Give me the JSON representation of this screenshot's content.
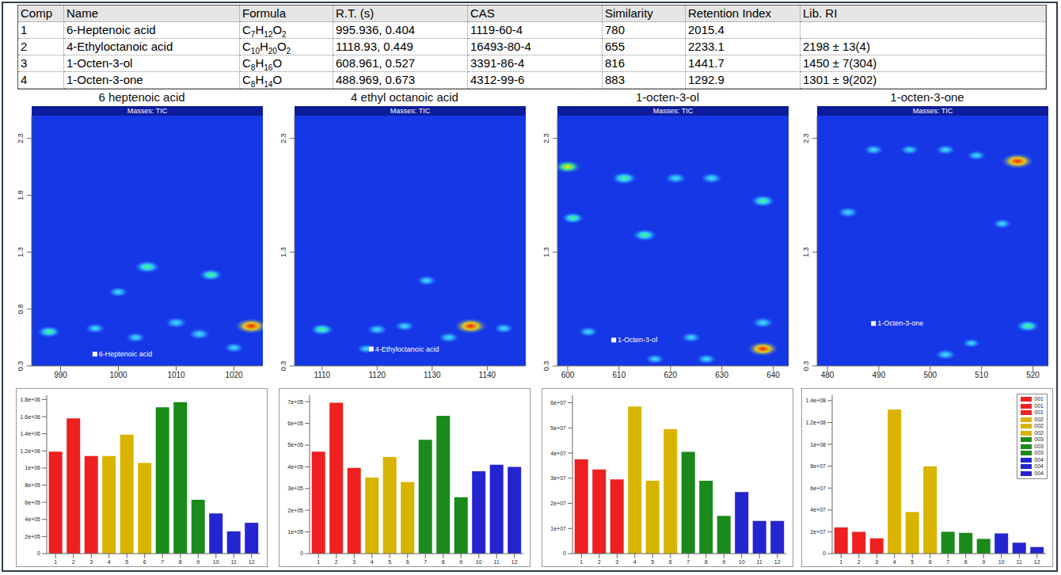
{
  "table": {
    "columns": [
      "Comp",
      "Name",
      "Formula",
      "R.T. (s)",
      "CAS",
      "Similarity",
      "Retention Index",
      "Lib. RI"
    ],
    "rows": [
      [
        1,
        "6-Heptenoic acid",
        "C7H12O2",
        "995.936, 0.404",
        "1119-60-4",
        780,
        2015.4,
        null
      ],
      [
        2,
        "4-Ethyloctanoic acid",
        "C10H20O2",
        "1118.93, 0.449",
        "16493-80-4",
        655,
        2233.1,
        "2198 ± 13(4)"
      ],
      [
        3,
        "1-Octen-3-ol",
        "C8H16O",
        "608.961, 0.527",
        "3391-86-4",
        816,
        1441.7,
        "1450 ± 7(304)"
      ],
      [
        4,
        "1-Octen-3-one",
        "C8H14O",
        "488.969, 0.673",
        "4312-99-6",
        883,
        1292.9,
        "1301 ± 9(202)"
      ]
    ]
  },
  "heatmaps": [
    {
      "type": "heatmap",
      "title": "6 heptenoic acid",
      "header": "Masses: TIC",
      "xlim": [
        985,
        1025
      ],
      "xticks": [
        990,
        1000,
        1010,
        1020
      ],
      "ylim": [
        0.3,
        2.5
      ],
      "yticks": [
        0.3,
        0.8,
        1.3,
        1.8,
        2.3
      ],
      "marker": {
        "label": "6-Heptenoic acid",
        "rt1": 995.936,
        "rt2": 0.404
      },
      "peaks": [
        {
          "rt1": 1005,
          "rt2": 1.17,
          "intensity": 0.6
        },
        {
          "rt1": 1016,
          "rt2": 1.1,
          "intensity": 0.5
        },
        {
          "rt1": 1000,
          "rt2": 0.95,
          "intensity": 0.3
        },
        {
          "rt1": 1023,
          "rt2": 0.65,
          "intensity": 1.0
        },
        {
          "rt1": 988,
          "rt2": 0.6,
          "intensity": 0.5
        },
        {
          "rt1": 1010,
          "rt2": 0.68,
          "intensity": 0.4
        },
        {
          "rt1": 1014,
          "rt2": 0.58,
          "intensity": 0.4
        },
        {
          "rt1": 1003,
          "rt2": 0.55,
          "intensity": 0.3
        },
        {
          "rt1": 996,
          "rt2": 0.63,
          "intensity": 0.3
        },
        {
          "rt1": 1020,
          "rt2": 0.46,
          "intensity": 0.3
        }
      ]
    },
    {
      "type": "heatmap",
      "title": "4 ethyl octanoic acid",
      "header": "Masses: TIC",
      "xlim": [
        1105,
        1147
      ],
      "xticks": [
        1110,
        1120,
        1130,
        1140
      ],
      "ylim": [
        0.3,
        2.5
      ],
      "yticks": [
        0.3,
        1.3,
        2.3
      ],
      "marker": {
        "label": "4-Ethyloctanoic acid",
        "rt1": 1118.93,
        "rt2": 0.449
      },
      "peaks": [
        {
          "rt1": 1137,
          "rt2": 0.65,
          "intensity": 1.0
        },
        {
          "rt1": 1110,
          "rt2": 0.62,
          "intensity": 0.5
        },
        {
          "rt1": 1120,
          "rt2": 0.62,
          "intensity": 0.35
        },
        {
          "rt1": 1125,
          "rt2": 0.65,
          "intensity": 0.3
        },
        {
          "rt1": 1129,
          "rt2": 1.05,
          "intensity": 0.3
        },
        {
          "rt1": 1133,
          "rt2": 0.55,
          "intensity": 0.35
        },
        {
          "rt1": 1143,
          "rt2": 0.63,
          "intensity": 0.3
        },
        {
          "rt1": 1118,
          "rt2": 0.45,
          "intensity": 0.2
        }
      ]
    },
    {
      "type": "heatmap",
      "title": "1-octen-3-ol",
      "header": "Masses: TIC",
      "xlim": [
        598,
        643
      ],
      "xticks": [
        600,
        610,
        620,
        630,
        640
      ],
      "ylim": [
        0.3,
        2.5
      ],
      "yticks": [
        0.3,
        1.3,
        2.3
      ],
      "marker": {
        "label": "1-Octen-3-ol",
        "rt1": 608.961,
        "rt2": 0.527
      },
      "peaks": [
        {
          "rt1": 600,
          "rt2": 2.05,
          "intensity": 0.65
        },
        {
          "rt1": 611,
          "rt2": 1.95,
          "intensity": 0.6
        },
        {
          "rt1": 621,
          "rt2": 1.95,
          "intensity": 0.4
        },
        {
          "rt1": 628,
          "rt2": 1.95,
          "intensity": 0.4
        },
        {
          "rt1": 638,
          "rt2": 1.75,
          "intensity": 0.55
        },
        {
          "rt1": 615,
          "rt2": 1.45,
          "intensity": 0.55
        },
        {
          "rt1": 601,
          "rt2": 1.6,
          "intensity": 0.45
        },
        {
          "rt1": 638,
          "rt2": 0.45,
          "intensity": 0.9
        },
        {
          "rt1": 638,
          "rt2": 0.68,
          "intensity": 0.4
        },
        {
          "rt1": 624,
          "rt2": 0.55,
          "intensity": 0.3
        },
        {
          "rt1": 627,
          "rt2": 0.36,
          "intensity": 0.3
        },
        {
          "rt1": 604,
          "rt2": 0.6,
          "intensity": 0.3
        },
        {
          "rt1": 617,
          "rt2": 0.36,
          "intensity": 0.25
        }
      ]
    },
    {
      "type": "heatmap",
      "title": "1-octen-3-one",
      "header": "Masses: TIC",
      "xlim": [
        478,
        523
      ],
      "xticks": [
        480,
        490,
        500,
        510,
        520
      ],
      "ylim": [
        0.3,
        2.5
      ],
      "yticks": [
        0.3,
        1.3,
        2.3
      ],
      "marker": {
        "label": "1-Octen-3-one",
        "rt1": 488.969,
        "rt2": 0.673
      },
      "peaks": [
        {
          "rt1": 517,
          "rt2": 2.1,
          "intensity": 1.0
        },
        {
          "rt1": 503,
          "rt2": 2.2,
          "intensity": 0.3
        },
        {
          "rt1": 484,
          "rt2": 1.65,
          "intensity": 0.35
        },
        {
          "rt1": 489,
          "rt2": 2.2,
          "intensity": 0.3
        },
        {
          "rt1": 496,
          "rt2": 2.2,
          "intensity": 0.25
        },
        {
          "rt1": 509,
          "rt2": 2.15,
          "intensity": 0.25
        },
        {
          "rt1": 514,
          "rt2": 1.55,
          "intensity": 0.25
        },
        {
          "rt1": 519,
          "rt2": 0.65,
          "intensity": 0.5
        },
        {
          "rt1": 503,
          "rt2": 0.4,
          "intensity": 0.35
        },
        {
          "rt1": 508,
          "rt2": 0.5,
          "intensity": 0.2
        }
      ]
    }
  ],
  "chart_data": [
    {
      "type": "bar",
      "categories": [
        "1",
        "2",
        "3",
        "4",
        "5",
        "6",
        "7",
        "8",
        "9",
        "10",
        "11",
        "12"
      ],
      "values": [
        1190000,
        1580000,
        1140000,
        1140000,
        1390000,
        1060000,
        1710000,
        1770000,
        630000,
        470000,
        260000,
        360000
      ],
      "colors": [
        "#ee2020",
        "#ee2020",
        "#ee2020",
        "#d8b400",
        "#d8b400",
        "#d8b400",
        "#1a8a1a",
        "#1a8a1a",
        "#1a8a1a",
        "#2424d0",
        "#2424d0",
        "#2424d0"
      ],
      "ylim": [
        0,
        1850000
      ],
      "yticks": [
        0,
        {
          "value": 200000,
          "label": "2e+05"
        },
        {
          "value": 400000,
          "label": "4e+05"
        },
        {
          "value": 600000,
          "label": "6e+05"
        },
        {
          "value": 800000,
          "label": "8e+05"
        },
        {
          "value": 1000000,
          "label": "1e+06"
        },
        {
          "value": 1200000,
          "label": "1.2e+06"
        },
        {
          "value": 1400000,
          "label": "1.4e+06"
        },
        {
          "value": 1600000,
          "label": "1.6e+06"
        },
        {
          "value": 1800000,
          "label": "1.8e+06"
        }
      ],
      "grid": false
    },
    {
      "type": "bar",
      "categories": [
        "1",
        "2",
        "3",
        "4",
        "5",
        "6",
        "7",
        "8",
        "9",
        "10",
        "11",
        "12"
      ],
      "values": [
        470000,
        695000,
        395000,
        350000,
        445000,
        330000,
        525000,
        635000,
        260000,
        380000,
        410000,
        400000
      ],
      "colors": [
        "#ee2020",
        "#ee2020",
        "#ee2020",
        "#d8b400",
        "#d8b400",
        "#d8b400",
        "#1a8a1a",
        "#1a8a1a",
        "#1a8a1a",
        "#2424d0",
        "#2424d0",
        "#2424d0"
      ],
      "ylim": [
        0,
        730000
      ],
      "yticks": [
        0,
        {
          "value": 100000,
          "label": "1e+05"
        },
        {
          "value": 200000,
          "label": "2e+05"
        },
        {
          "value": 300000,
          "label": "3e+05"
        },
        {
          "value": 400000,
          "label": "4e+05"
        },
        {
          "value": 500000,
          "label": "5e+05"
        },
        {
          "value": 600000,
          "label": "6e+05"
        },
        {
          "value": 700000,
          "label": "7e+05"
        }
      ],
      "grid": false
    },
    {
      "type": "bar",
      "categories": [
        "1",
        "2",
        "3",
        "4",
        "5",
        "6",
        "7",
        "8",
        "9",
        "10",
        "11",
        "12"
      ],
      "values": [
        37500000,
        33500000,
        29500000,
        58500000,
        29000000,
        49500000,
        40500000,
        29000000,
        15000000,
        24500000,
        13000000,
        13000000
      ],
      "colors": [
        "#ee2020",
        "#ee2020",
        "#ee2020",
        "#d8b400",
        "#d8b400",
        "#d8b400",
        "#1a8a1a",
        "#1a8a1a",
        "#1a8a1a",
        "#2424d0",
        "#2424d0",
        "#2424d0"
      ],
      "ylim": [
        0,
        63000000
      ],
      "yticks": [
        0,
        {
          "value": 10000000,
          "label": "1e+07"
        },
        {
          "value": 20000000,
          "label": "2e+07"
        },
        {
          "value": 30000000,
          "label": "3e+07"
        },
        {
          "value": 40000000,
          "label": "4e+07"
        },
        {
          "value": 50000000,
          "label": "5e+07"
        },
        {
          "value": 60000000,
          "label": "6e+07"
        }
      ],
      "grid": false
    },
    {
      "type": "bar",
      "categories": [
        "1",
        "2",
        "3",
        "4",
        "5",
        "6",
        "7",
        "8",
        "9",
        "10",
        "11",
        "12"
      ],
      "values": [
        24000000,
        20000000,
        14000000,
        132000000,
        38000000,
        80000000,
        20000000,
        19000000,
        13500000,
        18500000,
        10000000,
        6000000
      ],
      "colors": [
        "#ee2020",
        "#ee2020",
        "#ee2020",
        "#d8b400",
        "#d8b400",
        "#d8b400",
        "#1a8a1a",
        "#1a8a1a",
        "#1a8a1a",
        "#2424d0",
        "#2424d0",
        "#2424d0"
      ],
      "ylim": [
        0,
        145000000
      ],
      "yticks": [
        0,
        {
          "value": 20000000,
          "label": "2e+07"
        },
        {
          "value": 40000000,
          "label": "4e+07"
        },
        {
          "value": 60000000,
          "label": "6e+07"
        },
        {
          "value": 80000000,
          "label": "8e+07"
        },
        {
          "value": 100000000,
          "label": "1e+08"
        },
        {
          "value": 120000000,
          "label": "1.2e+08"
        },
        {
          "value": 140000000,
          "label": "1.4e+08"
        }
      ],
      "grid": false,
      "legend": "upper right",
      "legend_labels": [
        "001",
        "001",
        "001",
        "002",
        "002",
        "002",
        "003",
        "003",
        "003",
        "004",
        "004",
        "004"
      ]
    }
  ]
}
